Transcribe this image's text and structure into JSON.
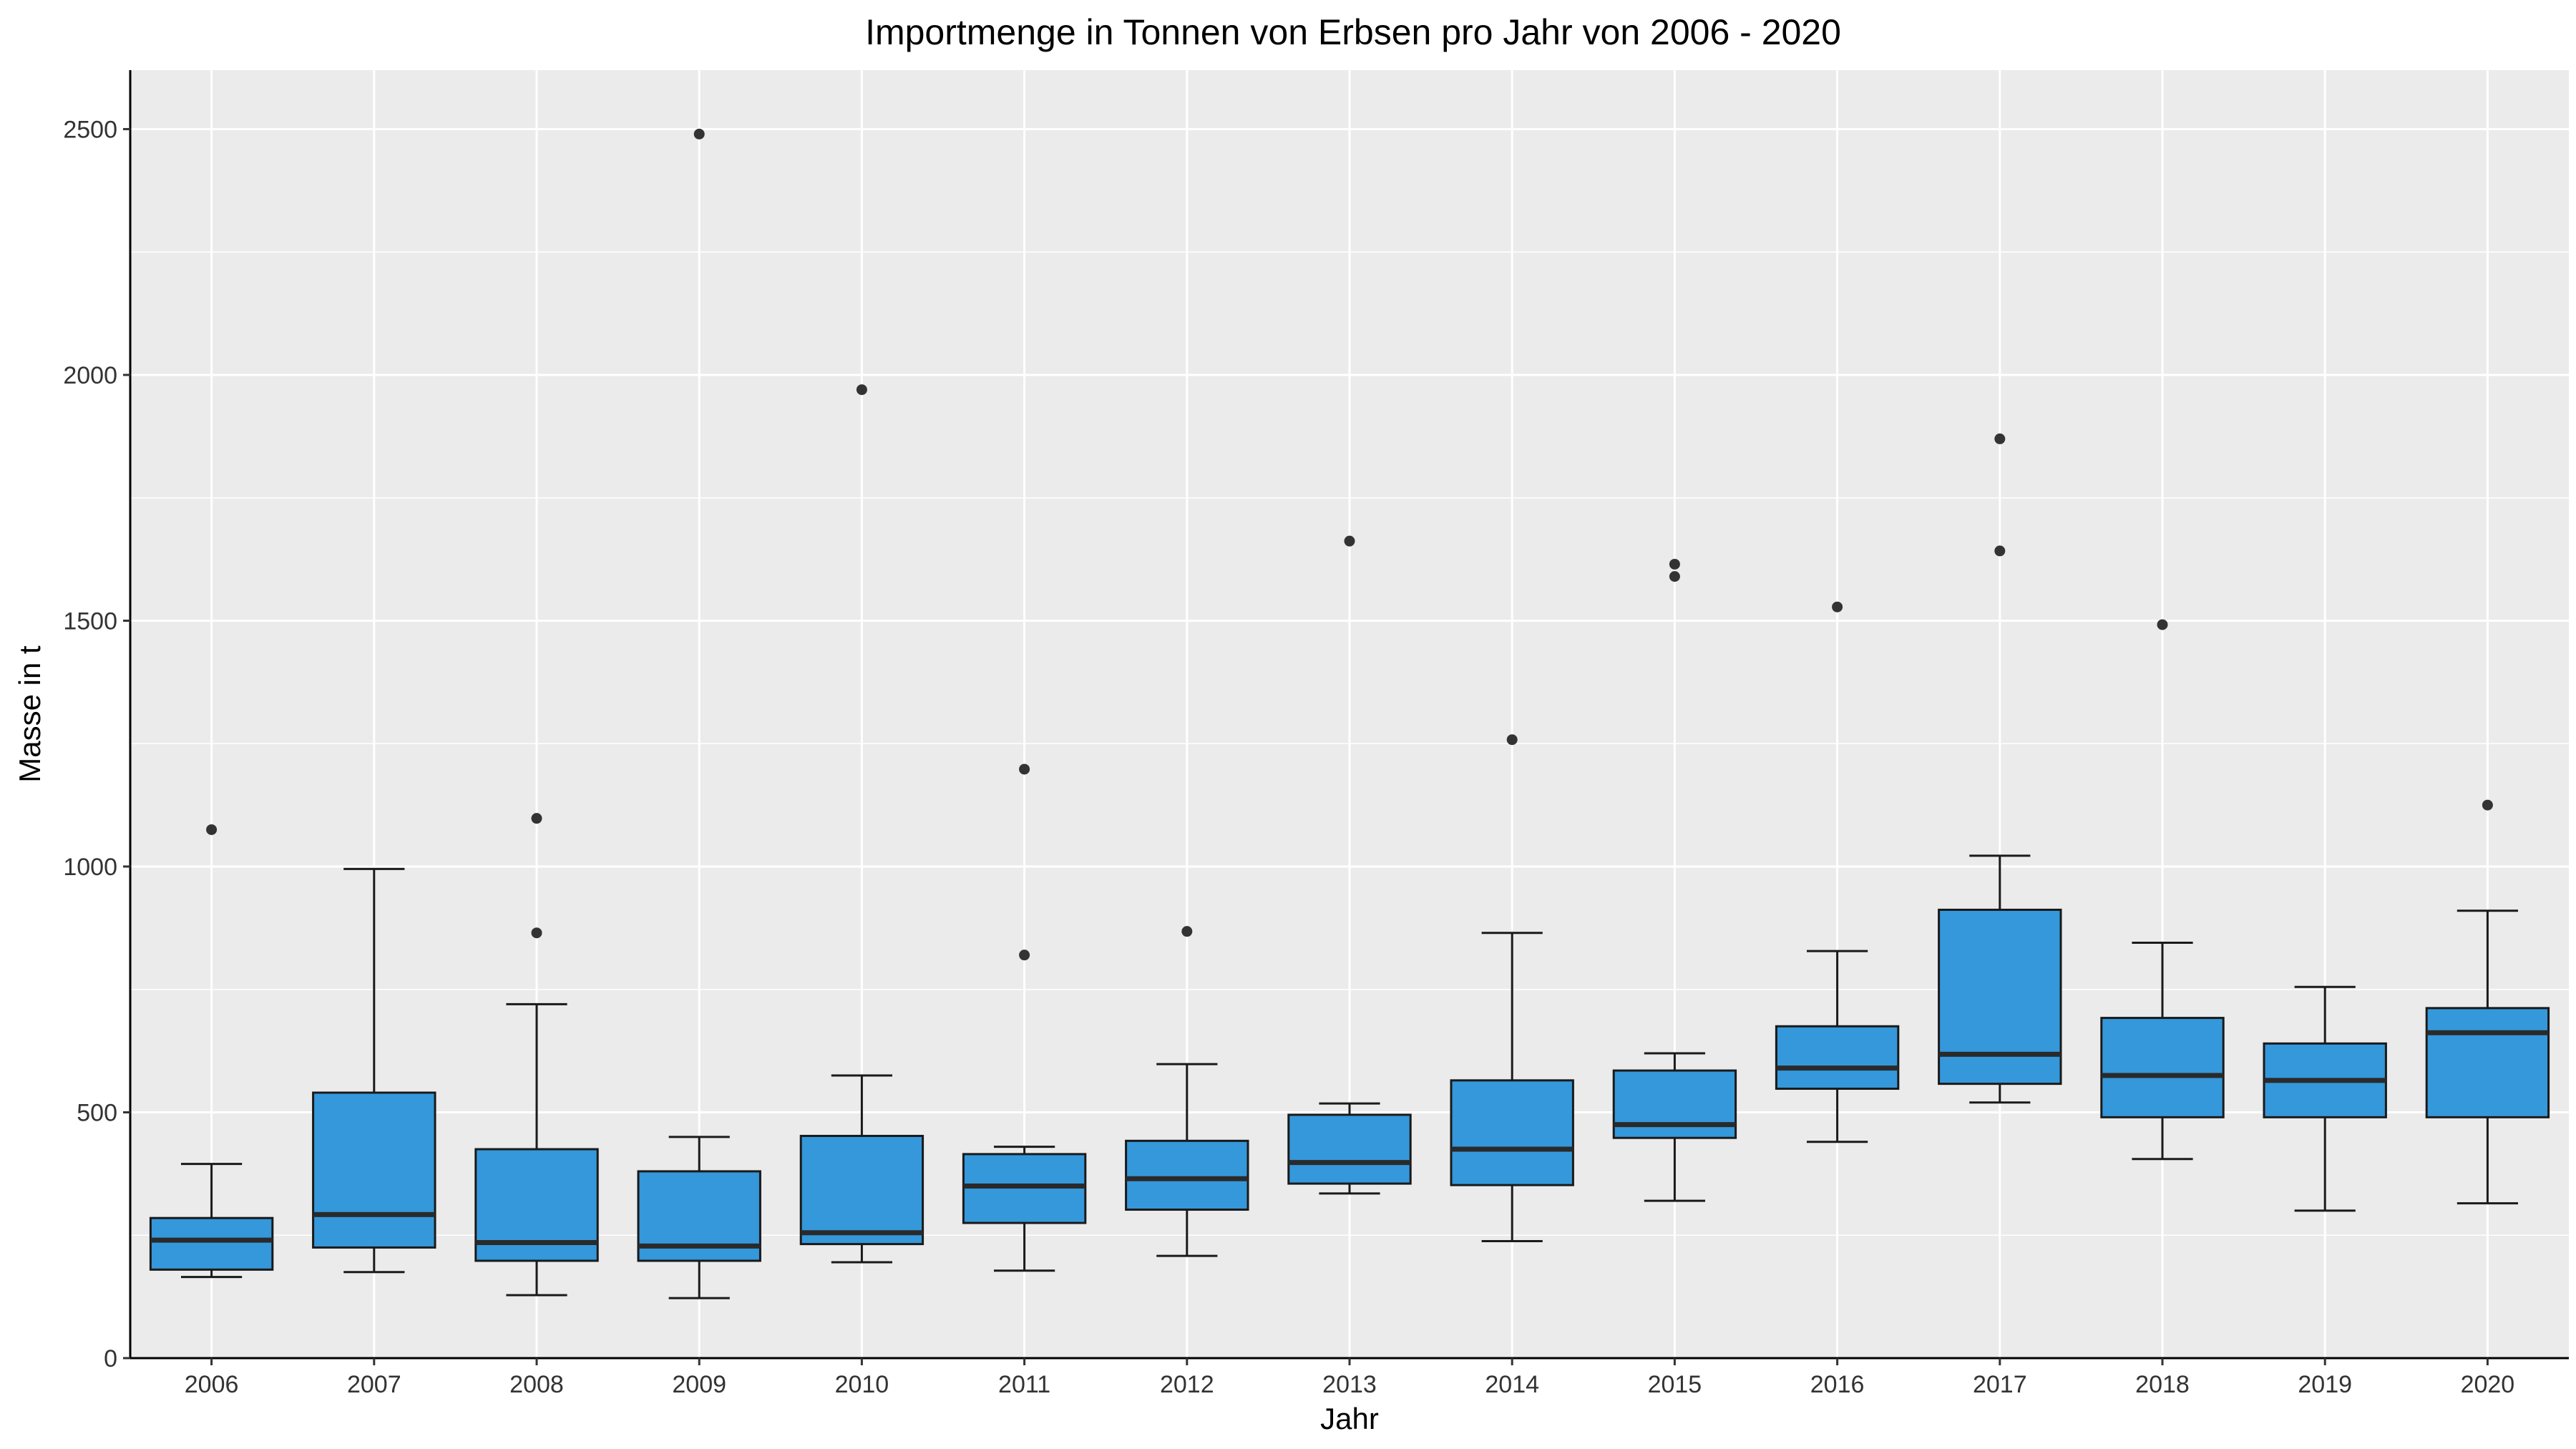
{
  "chart_data": {
    "type": "boxplot",
    "title": "Importmenge in Tonnen von Erbsen pro Jahr von 2006 - 2020",
    "xlabel": "Jahr",
    "ylabel": "Masse in t",
    "categories": [
      "2006",
      "2007",
      "2008",
      "2009",
      "2010",
      "2011",
      "2012",
      "2013",
      "2014",
      "2015",
      "2016",
      "2017",
      "2018",
      "2019",
      "2020"
    ],
    "ylim": [
      0,
      2620
    ],
    "yticks": [
      0,
      500,
      1000,
      1500,
      2000,
      2500
    ],
    "grid": true,
    "legend": "none",
    "colors": {
      "box_fill": "#3498db",
      "panel_background": "#ebebeb",
      "grid": "#ffffff",
      "median": "#2a2a2a",
      "outline": "#1a1a1a",
      "outlier": "#333333"
    },
    "boxes": [
      {
        "category": "2006",
        "whisker_low": 165,
        "q1": 180,
        "median": 240,
        "q3": 285,
        "whisker_high": 395,
        "outliers": [
          1075
        ]
      },
      {
        "category": "2007",
        "whisker_low": 175,
        "q1": 225,
        "median": 292,
        "q3": 540,
        "whisker_high": 995,
        "outliers": []
      },
      {
        "category": "2008",
        "whisker_low": 128,
        "q1": 198,
        "median": 235,
        "q3": 425,
        "whisker_high": 720,
        "outliers": [
          865,
          1098
        ]
      },
      {
        "category": "2009",
        "whisker_low": 122,
        "q1": 198,
        "median": 228,
        "q3": 380,
        "whisker_high": 450,
        "outliers": [
          2490
        ]
      },
      {
        "category": "2010",
        "whisker_low": 195,
        "q1": 232,
        "median": 255,
        "q3": 452,
        "whisker_high": 575,
        "outliers": [
          1970
        ]
      },
      {
        "category": "2011",
        "whisker_low": 178,
        "q1": 275,
        "median": 350,
        "q3": 415,
        "whisker_high": 430,
        "outliers": [
          820,
          1198
        ]
      },
      {
        "category": "2012",
        "whisker_low": 208,
        "q1": 302,
        "median": 365,
        "q3": 442,
        "whisker_high": 598,
        "outliers": [
          868
        ]
      },
      {
        "category": "2013",
        "whisker_low": 335,
        "q1": 355,
        "median": 398,
        "q3": 495,
        "whisker_high": 518,
        "outliers": [
          1662
        ]
      },
      {
        "category": "2014",
        "whisker_low": 238,
        "q1": 352,
        "median": 425,
        "q3": 565,
        "whisker_high": 865,
        "outliers": [
          1258
        ]
      },
      {
        "category": "2015",
        "whisker_low": 320,
        "q1": 448,
        "median": 475,
        "q3": 585,
        "whisker_high": 620,
        "outliers": [
          1590,
          1615
        ]
      },
      {
        "category": "2016",
        "whisker_low": 440,
        "q1": 548,
        "median": 590,
        "q3": 675,
        "whisker_high": 828,
        "outliers": [
          1528
        ]
      },
      {
        "category": "2017",
        "whisker_low": 520,
        "q1": 558,
        "median": 618,
        "q3": 912,
        "whisker_high": 1022,
        "outliers": [
          1642,
          1870
        ]
      },
      {
        "category": "2018",
        "whisker_low": 405,
        "q1": 490,
        "median": 575,
        "q3": 692,
        "whisker_high": 845,
        "outliers": [
          1492
        ]
      },
      {
        "category": "2019",
        "whisker_low": 300,
        "q1": 490,
        "median": 565,
        "q3": 640,
        "whisker_high": 755,
        "outliers": []
      },
      {
        "category": "2020",
        "whisker_low": 315,
        "q1": 490,
        "median": 662,
        "q3": 712,
        "whisker_high": 910,
        "outliers": [
          1125
        ]
      }
    ]
  }
}
